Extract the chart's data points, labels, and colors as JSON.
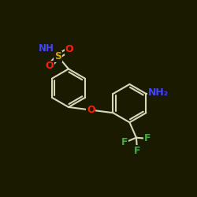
{
  "bg_color": "#1a1a00",
  "bond_color": "#d8d8b8",
  "bond_width": 1.5,
  "atom_colors": {
    "N": "#4444ff",
    "O": "#ff2200",
    "S": "#ccaa00",
    "F": "#44aa44",
    "C": "#d8d8b8"
  },
  "fig_bg": "#1a1a00",
  "xlim": [
    -3.8,
    4.2
  ],
  "ylim": [
    -3.8,
    3.2
  ]
}
